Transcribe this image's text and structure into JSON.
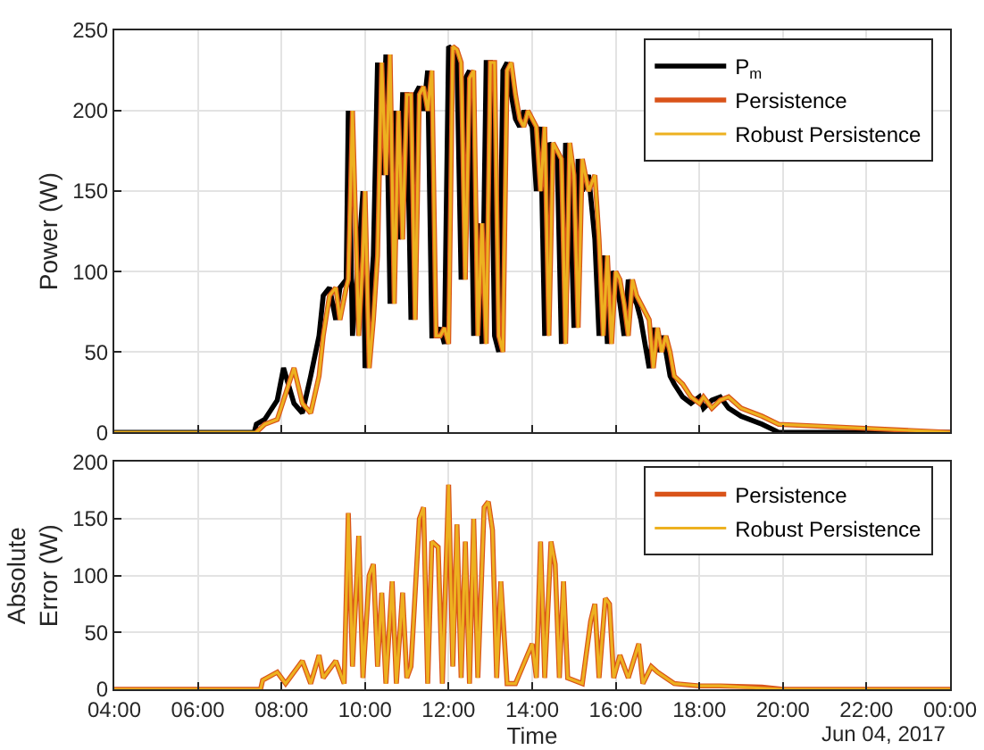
{
  "chart_data": [
    {
      "type": "line",
      "ylabel": "Power (W)",
      "xlim": [
        4,
        24
      ],
      "xticks": [
        {
          "value": 4,
          "label": null
        },
        {
          "value": 6,
          "label": null
        },
        {
          "value": 8,
          "label": null
        },
        {
          "value": 10,
          "label": null
        },
        {
          "value": 12,
          "label": null
        },
        {
          "value": 14,
          "label": null
        },
        {
          "value": 16,
          "label": null
        },
        {
          "value": 18,
          "label": null
        },
        {
          "value": 20,
          "label": null
        },
        {
          "value": 22,
          "label": null
        },
        {
          "value": 24,
          "label": null
        }
      ],
      "ylim": [
        0,
        250
      ],
      "yticks": [
        0,
        50,
        100,
        150,
        200,
        250
      ],
      "grid": true,
      "legend": "top right",
      "tick_labels": "y",
      "x": [
        4,
        7.35,
        7.4,
        7.6,
        7.9,
        8.05,
        8.3,
        8.5,
        8.7,
        8.9,
        9.0,
        9.15,
        9.3,
        9.4,
        9.55,
        9.6,
        9.7,
        9.85,
        9.95,
        10.0,
        10.1,
        10.2,
        10.3,
        10.4,
        10.5,
        10.6,
        10.7,
        10.8,
        10.9,
        11.0,
        11.1,
        11.2,
        11.3,
        11.4,
        11.5,
        11.6,
        11.7,
        11.8,
        11.9,
        12.0,
        12.1,
        12.2,
        12.3,
        12.4,
        12.5,
        12.6,
        12.7,
        12.8,
        12.9,
        13.0,
        13.1,
        13.2,
        13.3,
        13.4,
        13.5,
        13.6,
        13.7,
        13.8,
        13.9,
        14.0,
        14.1,
        14.2,
        14.3,
        14.4,
        14.5,
        14.6,
        14.7,
        14.8,
        14.9,
        15.0,
        15.1,
        15.2,
        15.35,
        15.5,
        15.6,
        15.7,
        15.8,
        15.9,
        16.0,
        16.1,
        16.2,
        16.3,
        16.4,
        16.5,
        16.6,
        16.8,
        16.9,
        17.0,
        17.1,
        17.2,
        17.3,
        17.4,
        17.6,
        17.8,
        18.0,
        18.1,
        18.3,
        18.5,
        18.7,
        19.0,
        19.5,
        19.9,
        24
      ],
      "series": [
        {
          "name": "P$_{m}$",
          "color": "#000000",
          "values": [
            0,
            0,
            5,
            8,
            20,
            40,
            18,
            12,
            35,
            60,
            85,
            90,
            70,
            90,
            95,
            200,
            60,
            110,
            150,
            40,
            70,
            110,
            230,
            160,
            235,
            80,
            200,
            120,
            210,
            210,
            70,
            210,
            215,
            200,
            225,
            60,
            60,
            65,
            55,
            240,
            238,
            230,
            95,
            220,
            225,
            60,
            130,
            55,
            230,
            230,
            60,
            50,
            225,
            230,
            210,
            195,
            190,
            200,
            195,
            190,
            150,
            190,
            60,
            180,
            175,
            170,
            55,
            180,
            160,
            65,
            170,
            150,
            160,
            120,
            60,
            110,
            55,
            100,
            95,
            80,
            60,
            95,
            85,
            80,
            70,
            40,
            65,
            50,
            60,
            50,
            35,
            30,
            22,
            18,
            22,
            15,
            20,
            22,
            15,
            10,
            5,
            0,
            0
          ]
        },
        {
          "name": "Persistence",
          "color": "#d95319",
          "values": [
            null,
            null,
            0,
            5,
            8,
            20,
            40,
            18,
            12,
            35,
            60,
            85,
            90,
            70,
            90,
            95,
            200,
            60,
            110,
            150,
            40,
            70,
            110,
            230,
            160,
            235,
            80,
            200,
            120,
            210,
            210,
            70,
            210,
            215,
            200,
            225,
            60,
            60,
            65,
            55,
            240,
            238,
            230,
            95,
            220,
            225,
            60,
            130,
            55,
            230,
            230,
            60,
            50,
            225,
            230,
            210,
            195,
            190,
            200,
            195,
            190,
            150,
            190,
            60,
            180,
            175,
            170,
            55,
            180,
            160,
            65,
            170,
            150,
            160,
            120,
            60,
            110,
            55,
            100,
            95,
            80,
            60,
            95,
            85,
            80,
            70,
            40,
            65,
            50,
            60,
            50,
            35,
            30,
            22,
            18,
            22,
            15,
            20,
            22,
            15,
            10,
            5,
            0
          ]
        },
        {
          "name": "Robust Persistence",
          "color": "#edb120",
          "values": [
            0,
            0,
            0,
            5,
            8,
            20,
            40,
            18,
            12,
            35,
            60,
            85,
            90,
            70,
            90,
            95,
            200,
            60,
            110,
            150,
            40,
            70,
            110,
            230,
            160,
            235,
            80,
            200,
            120,
            210,
            210,
            70,
            210,
            215,
            200,
            225,
            60,
            60,
            65,
            55,
            240,
            238,
            230,
            95,
            220,
            225,
            60,
            130,
            55,
            230,
            230,
            60,
            50,
            225,
            230,
            210,
            195,
            190,
            200,
            195,
            190,
            150,
            190,
            60,
            180,
            175,
            170,
            55,
            180,
            160,
            65,
            170,
            150,
            160,
            120,
            60,
            110,
            55,
            100,
            95,
            80,
            60,
            95,
            85,
            80,
            70,
            40,
            65,
            50,
            60,
            50,
            35,
            30,
            22,
            18,
            22,
            15,
            20,
            22,
            15,
            10,
            5,
            0
          ]
        }
      ]
    },
    {
      "type": "line",
      "ylabel": "Absolute Error (W)",
      "xlabel": "Time",
      "annotations": [
        "Jun 04, 2017"
      ],
      "xlim": [
        4,
        24
      ],
      "xticks": [
        {
          "value": 4,
          "label": "04:00"
        },
        {
          "value": 6,
          "label": "06:00"
        },
        {
          "value": 8,
          "label": "08:00"
        },
        {
          "value": 10,
          "label": "10:00"
        },
        {
          "value": 12,
          "label": "12:00"
        },
        {
          "value": 14,
          "label": "14:00"
        },
        {
          "value": 16,
          "label": "16:00"
        },
        {
          "value": 18,
          "label": "18:00"
        },
        {
          "value": 20,
          "label": "20:00"
        },
        {
          "value": 22,
          "label": "22:00"
        },
        {
          "value": 24,
          "label": "00:00"
        }
      ],
      "ylim": [
        0,
        200
      ],
      "yticks": [
        0,
        50,
        100,
        150,
        200
      ],
      "grid": true,
      "legend": "top right",
      "x": [
        4,
        7.5,
        7.55,
        7.9,
        8.1,
        8.5,
        8.7,
        8.9,
        9.0,
        9.3,
        9.5,
        9.6,
        9.7,
        9.85,
        9.95,
        10.1,
        10.2,
        10.3,
        10.4,
        10.5,
        10.65,
        10.75,
        10.9,
        11.0,
        11.1,
        11.3,
        11.4,
        11.5,
        11.6,
        11.75,
        11.85,
        12.0,
        12.1,
        12.2,
        12.3,
        12.4,
        12.5,
        12.6,
        12.7,
        12.85,
        12.95,
        13.05,
        13.15,
        13.25,
        13.4,
        13.6,
        14.0,
        14.1,
        14.2,
        14.3,
        14.45,
        14.55,
        14.65,
        14.75,
        14.85,
        15.2,
        15.4,
        15.5,
        15.6,
        15.75,
        15.85,
        15.95,
        16.1,
        16.3,
        16.55,
        16.65,
        16.85,
        17.0,
        17.4,
        18.0,
        18.5,
        19.5,
        20.0,
        24
      ],
      "series": [
        {
          "name": "Persistence",
          "color": "#d95319",
          "values": [
            0,
            0,
            8,
            15,
            5,
            25,
            5,
            30,
            10,
            25,
            5,
            155,
            20,
            135,
            10,
            100,
            110,
            20,
            85,
            5,
            95,
            5,
            85,
            10,
            20,
            150,
            160,
            5,
            130,
            125,
            5,
            180,
            20,
            145,
            10,
            130,
            5,
            150,
            10,
            160,
            165,
            140,
            10,
            95,
            5,
            5,
            40,
            10,
            130,
            10,
            130,
            110,
            10,
            95,
            10,
            5,
            60,
            75,
            10,
            80,
            75,
            10,
            30,
            10,
            40,
            5,
            20,
            15,
            5,
            3,
            3,
            2,
            0,
            0
          ]
        },
        {
          "name": "Robust Persistence",
          "color": "#edb120",
          "values": [
            0,
            0,
            8,
            15,
            5,
            25,
            5,
            30,
            10,
            25,
            5,
            155,
            20,
            135,
            10,
            100,
            110,
            20,
            85,
            5,
            95,
            5,
            85,
            10,
            20,
            150,
            160,
            5,
            130,
            125,
            5,
            180,
            20,
            145,
            10,
            130,
            5,
            150,
            10,
            160,
            165,
            140,
            10,
            95,
            5,
            5,
            40,
            10,
            130,
            10,
            130,
            110,
            10,
            95,
            10,
            5,
            60,
            75,
            10,
            80,
            75,
            10,
            30,
            10,
            40,
            5,
            20,
            15,
            5,
            3,
            3,
            1,
            0,
            0
          ]
        }
      ]
    }
  ]
}
